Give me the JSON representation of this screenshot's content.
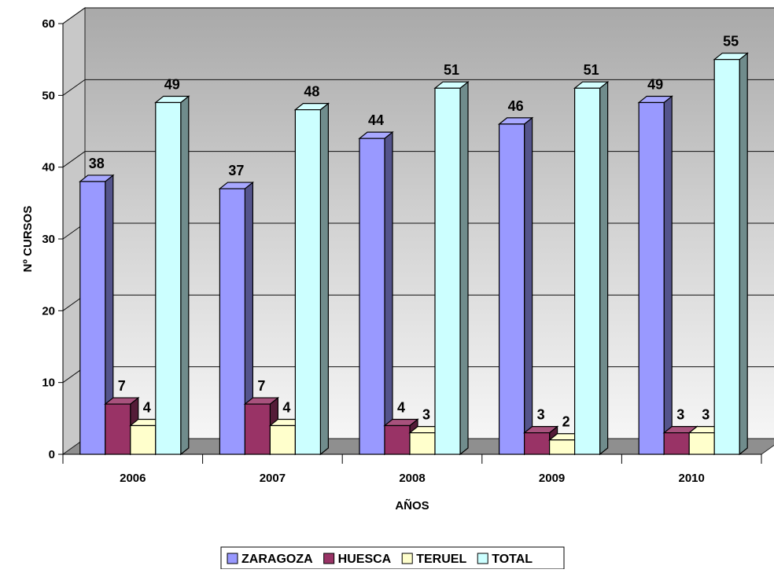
{
  "chart_data": {
    "type": "bar",
    "title": "",
    "xlabel": "AÑOS",
    "ylabel": "Nº CURSOS",
    "categories": [
      "2006",
      "2007",
      "2008",
      "2009",
      "2010"
    ],
    "series": [
      {
        "name": "ZARAGOZA",
        "values": [
          38,
          37,
          44,
          46,
          49
        ],
        "color": "#9999FF"
      },
      {
        "name": "HUESCA",
        "values": [
          7,
          7,
          4,
          3,
          3
        ],
        "color": "#993366"
      },
      {
        "name": "TERUEL",
        "values": [
          4,
          4,
          3,
          2,
          3
        ],
        "color": "#FFFFCC"
      },
      {
        "name": "TOTAL",
        "values": [
          49,
          48,
          51,
          51,
          55
        ],
        "color": "#CCFFFF"
      }
    ],
    "yticks": [
      "0",
      "10",
      "20",
      "30",
      "40",
      "50",
      "60"
    ],
    "ylim": [
      0,
      60
    ],
    "grid": true,
    "legend": "bottom",
    "style": "3d-clustered-column"
  }
}
